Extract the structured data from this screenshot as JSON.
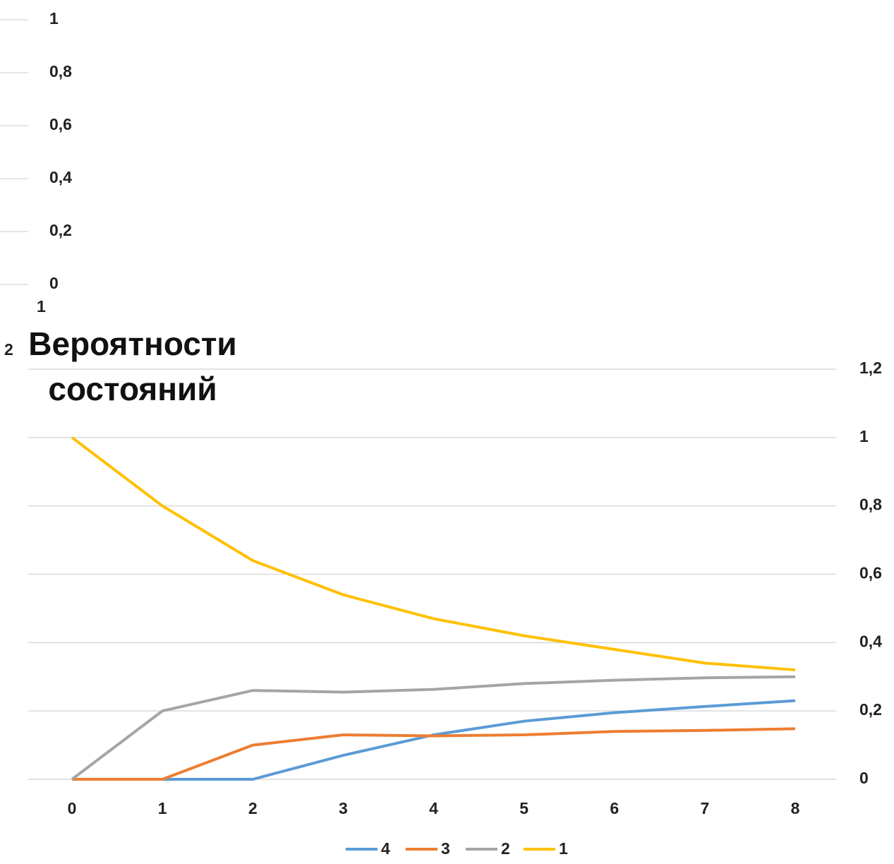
{
  "fragment": {
    "yticks": [
      {
        "value": 1,
        "label": "1"
      },
      {
        "value": 0.8,
        "label": "0,8"
      },
      {
        "value": 0.6,
        "label": "0,6"
      },
      {
        "value": 0.4,
        "label": "0,4"
      },
      {
        "value": 0.2,
        "label": "0,2"
      },
      {
        "value": 0,
        "label": "0"
      }
    ],
    "texts": [
      "1",
      "2"
    ]
  },
  "chart_data": {
    "type": "line",
    "title": "Вероятности состояний",
    "categories": [
      "0",
      "1",
      "2",
      "3",
      "4",
      "5",
      "6",
      "7",
      "8"
    ],
    "series": [
      {
        "name": "4",
        "color": "#5b9bd5",
        "values": [
          0,
          0,
          0,
          0.07,
          0.13,
          0.17,
          0.195,
          0.213,
          0.23
        ]
      },
      {
        "name": "3",
        "color": "#ed7d31",
        "values": [
          0,
          0,
          0.1,
          0.13,
          0.127,
          0.13,
          0.14,
          0.143,
          0.148
        ]
      },
      {
        "name": "2",
        "color": "#a5a5a5",
        "values": [
          0,
          0.2,
          0.26,
          0.255,
          0.263,
          0.28,
          0.29,
          0.297,
          0.3
        ]
      },
      {
        "name": "1",
        "color": "#ffc000",
        "values": [
          1,
          0.8,
          0.64,
          0.54,
          0.47,
          0.42,
          0.38,
          0.34,
          0.32
        ]
      }
    ],
    "ylim": [
      0,
      1.2
    ],
    "yticks": [
      0,
      {
        "value": 0.2,
        "label": "0,2"
      },
      {
        "value": 0.4,
        "label": "0,4"
      },
      {
        "value": 0.6,
        "label": "0,6"
      },
      {
        "value": 0.8,
        "label": "0,8"
      },
      1,
      {
        "value": 1.2,
        "label": "1,2"
      }
    ],
    "grid": true,
    "legend": "bottom"
  }
}
